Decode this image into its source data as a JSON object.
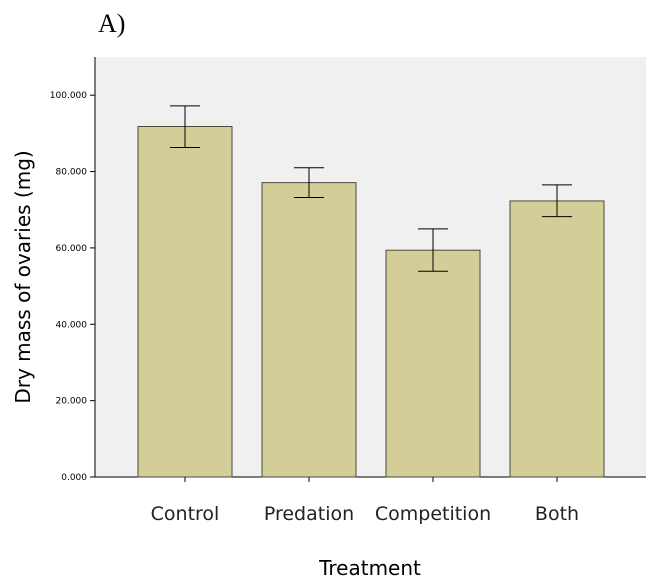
{
  "panel_label": "A)",
  "colors": {
    "plot_background": "#f0f0f0",
    "bar_fill": "#d3ce98",
    "bar_stroke": "#4a4a3a",
    "axis": "#000000"
  },
  "chart_data": {
    "type": "bar",
    "title": "",
    "xlabel": "Treatment",
    "ylabel": "Dry mass of ovaries (mg)",
    "categories": [
      "Control",
      "Predation",
      "Competition",
      "Both"
    ],
    "values": [
      91.8,
      77.1,
      59.4,
      72.3
    ],
    "error_low": [
      86.3,
      73.2,
      53.9,
      68.2
    ],
    "error_high": [
      97.2,
      81.0,
      65.0,
      76.5
    ],
    "ylim": [
      0,
      110
    ],
    "yticks": [
      0,
      20,
      40,
      60,
      80,
      100
    ],
    "ytick_labels": [
      "0.000",
      "20.000",
      "40.000",
      "60.000",
      "80.000",
      "100.000"
    ],
    "grid": false,
    "legend": "none"
  }
}
